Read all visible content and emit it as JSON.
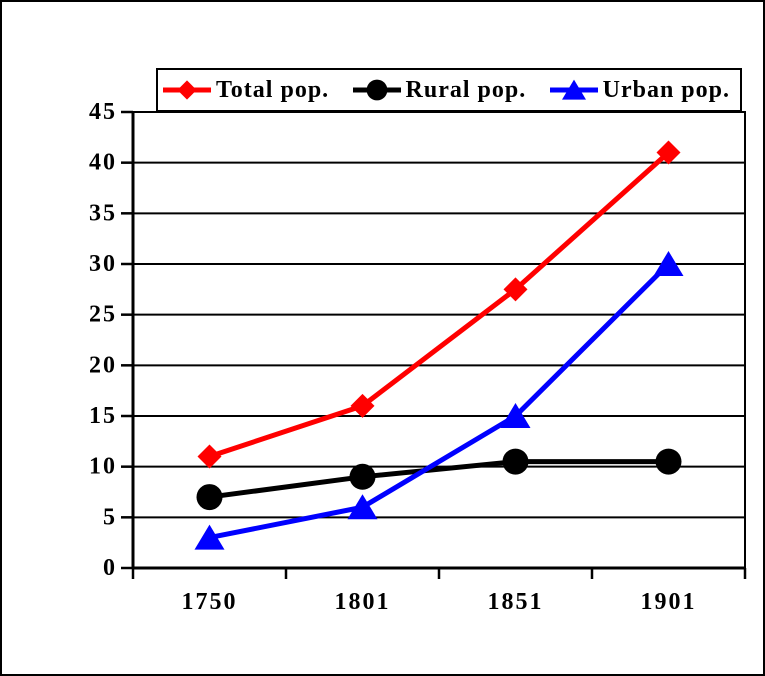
{
  "chart_data": {
    "type": "line",
    "title": "",
    "xlabel": "",
    "ylabel": "",
    "categories": [
      "1750",
      "1801",
      "1851",
      "1901"
    ],
    "series": [
      {
        "name": "Total pop.",
        "color": "#ff0000",
        "marker": "diamond",
        "values": [
          11,
          16,
          27.5,
          41
        ]
      },
      {
        "name": "Rural pop.",
        "color": "#000000",
        "marker": "circle",
        "values": [
          7,
          9,
          10.5,
          10.5
        ]
      },
      {
        "name": "Urban pop.",
        "color": "#0000ff",
        "marker": "triangle",
        "values": [
          3,
          6,
          15,
          30
        ]
      }
    ],
    "ylim": [
      0,
      45
    ],
    "ytick_step": 5,
    "yticks": [
      0,
      5,
      10,
      15,
      20,
      25,
      30,
      35,
      40,
      45
    ],
    "grid": "horizontal",
    "grid_color": "#000000",
    "axis_color": "#000000",
    "background": "#ffffff",
    "legend_position": "top",
    "line_width": 5
  }
}
